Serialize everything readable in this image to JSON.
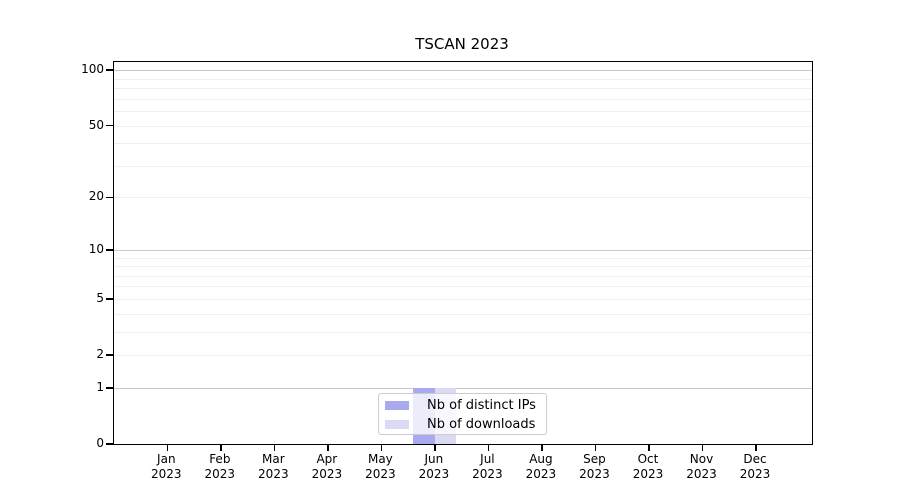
{
  "chart_data": {
    "type": "bar",
    "title": "TSCAN 2023",
    "categories": [
      {
        "month": "Jan",
        "year": "2023"
      },
      {
        "month": "Feb",
        "year": "2023"
      },
      {
        "month": "Mar",
        "year": "2023"
      },
      {
        "month": "Apr",
        "year": "2023"
      },
      {
        "month": "May",
        "year": "2023"
      },
      {
        "month": "Jun",
        "year": "2023"
      },
      {
        "month": "Jul",
        "year": "2023"
      },
      {
        "month": "Aug",
        "year": "2023"
      },
      {
        "month": "Sep",
        "year": "2023"
      },
      {
        "month": "Oct",
        "year": "2023"
      },
      {
        "month": "Nov",
        "year": "2023"
      },
      {
        "month": "Dec",
        "year": "2023"
      }
    ],
    "series": [
      {
        "name": "Nb of distinct IPs",
        "color": "#a9a9ef",
        "values": [
          0,
          0,
          0,
          0,
          0,
          1,
          0,
          0,
          0,
          0,
          0,
          0
        ]
      },
      {
        "name": "Nb of downloads",
        "color": "#dadaf5",
        "values": [
          0,
          0,
          0,
          0,
          0,
          1,
          0,
          0,
          0,
          0,
          0,
          0
        ]
      }
    ],
    "xlabel": "",
    "ylabel": "",
    "yaxis": {
      "scale": "log10(1+y)",
      "lim": [
        0,
        112
      ],
      "ticks": [
        100,
        50,
        20,
        10,
        5,
        2,
        1,
        0
      ],
      "major_gridlines": [
        1,
        10,
        100
      ],
      "minor_gridlines": [
        2,
        3,
        4,
        5,
        6,
        7,
        8,
        9,
        20,
        30,
        40,
        50,
        60,
        70,
        80,
        90
      ]
    },
    "grid": true,
    "legend_position": "bottom-center",
    "colors": {
      "grid_major": "#c9c9c9",
      "grid_minor": "#efefef",
      "axis": "#000000",
      "legend_border": "#cccccc",
      "title_text": "#000000"
    }
  }
}
